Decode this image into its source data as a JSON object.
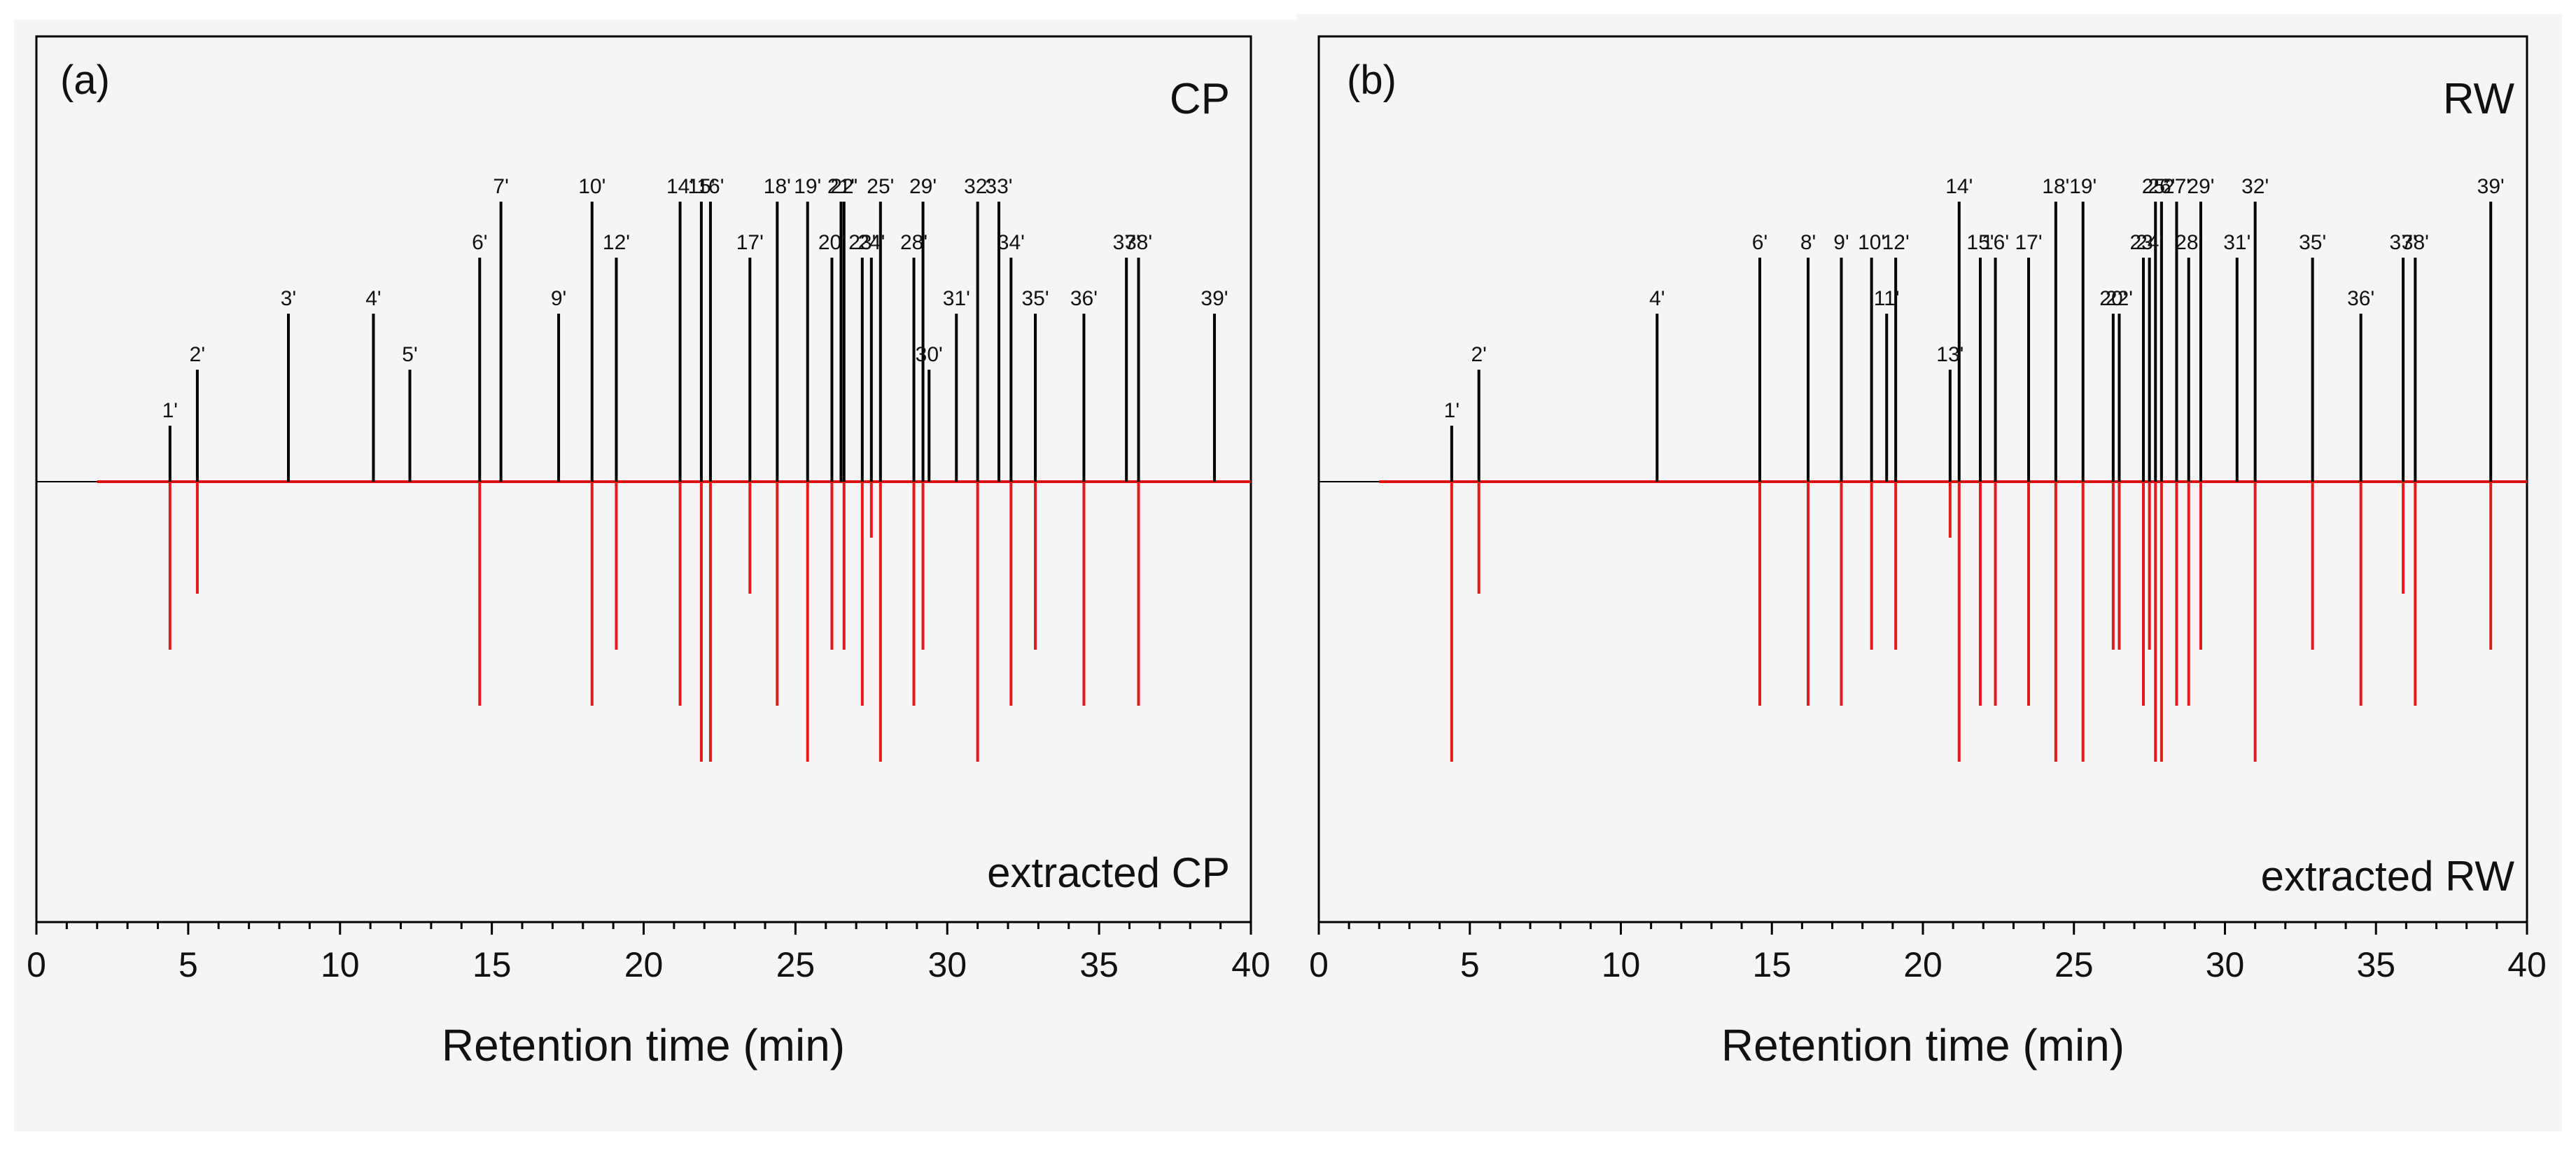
{
  "chart_data": [
    {
      "type": "stick",
      "panel_label": "(a)",
      "title_top": "CP",
      "title_bottom": "extracted CP",
      "xlabel": "Retention time (min)",
      "xlim": [
        0,
        40
      ],
      "xticks": [
        "0",
        "5",
        "10",
        "15",
        "20",
        "25",
        "30",
        "35",
        "40"
      ],
      "ylim": [
        -1,
        1
      ],
      "series": [
        {
          "name": "CP",
          "color": "#000000",
          "peaks": [
            {
              "label": "1'",
              "x": 4.4,
              "y": 0.2
            },
            {
              "label": "2'",
              "x": 5.3,
              "y": 0.4
            },
            {
              "label": "3'",
              "x": 8.3,
              "y": 0.6
            },
            {
              "label": "4'",
              "x": 11.1,
              "y": 0.6
            },
            {
              "label": "5'",
              "x": 12.3,
              "y": 0.4
            },
            {
              "label": "6'",
              "x": 14.6,
              "y": 0.8
            },
            {
              "label": "7'",
              "x": 15.3,
              "y": 1.0
            },
            {
              "label": "9'",
              "x": 17.2,
              "y": 0.6
            },
            {
              "label": "10'",
              "x": 18.3,
              "y": 1.0
            },
            {
              "label": "12'",
              "x": 19.1,
              "y": 0.8
            },
            {
              "label": "14'",
              "x": 21.2,
              "y": 1.0
            },
            {
              "label": "15'",
              "x": 21.9,
              "y": 1.0
            },
            {
              "label": "16'",
              "x": 22.2,
              "y": 1.0
            },
            {
              "label": "17'",
              "x": 23.5,
              "y": 0.8
            },
            {
              "label": "18'",
              "x": 24.4,
              "y": 1.0
            },
            {
              "label": "19'",
              "x": 25.4,
              "y": 1.0
            },
            {
              "label": "20'",
              "x": 26.2,
              "y": 0.8
            },
            {
              "label": "21'",
              "x": 26.5,
              "y": 1.0
            },
            {
              "label": "22'",
              "x": 26.6,
              "y": 1.0
            },
            {
              "label": "23'",
              "x": 27.2,
              "y": 0.8
            },
            {
              "label": "24'",
              "x": 27.5,
              "y": 0.8
            },
            {
              "label": "25'",
              "x": 27.8,
              "y": 1.0
            },
            {
              "label": "28'",
              "x": 28.9,
              "y": 0.8
            },
            {
              "label": "29'",
              "x": 29.2,
              "y": 1.0
            },
            {
              "label": "30'",
              "x": 29.4,
              "y": 0.4
            },
            {
              "label": "31'",
              "x": 30.3,
              "y": 0.6
            },
            {
              "label": "32'",
              "x": 31.0,
              "y": 1.0
            },
            {
              "label": "33'",
              "x": 31.7,
              "y": 1.0
            },
            {
              "label": "34'",
              "x": 32.1,
              "y": 0.8
            },
            {
              "label": "35'",
              "x": 32.9,
              "y": 0.6
            },
            {
              "label": "36'",
              "x": 34.5,
              "y": 0.6
            },
            {
              "label": "37'",
              "x": 35.9,
              "y": 0.8
            },
            {
              "label": "38'",
              "x": 36.3,
              "y": 0.8
            },
            {
              "label": "39'",
              "x": 38.8,
              "y": 0.6
            }
          ]
        },
        {
          "name": "extracted CP",
          "color": "#e31a1c",
          "peaks": [
            {
              "x": 4.4,
              "y": -0.6
            },
            {
              "x": 5.3,
              "y": -0.4
            },
            {
              "x": 14.6,
              "y": -0.8
            },
            {
              "x": 18.3,
              "y": -0.8
            },
            {
              "x": 19.1,
              "y": -0.6
            },
            {
              "x": 21.2,
              "y": -0.8
            },
            {
              "x": 21.9,
              "y": -1.0
            },
            {
              "x": 22.2,
              "y": -1.0
            },
            {
              "x": 23.5,
              "y": -0.4
            },
            {
              "x": 24.4,
              "y": -0.8
            },
            {
              "x": 25.4,
              "y": -1.0
            },
            {
              "x": 26.2,
              "y": -0.6
            },
            {
              "x": 26.6,
              "y": -0.6
            },
            {
              "x": 27.2,
              "y": -0.8
            },
            {
              "x": 27.5,
              "y": -0.2
            },
            {
              "x": 27.8,
              "y": -1.0
            },
            {
              "x": 28.9,
              "y": -0.8
            },
            {
              "x": 29.2,
              "y": -0.6
            },
            {
              "x": 31.0,
              "y": -1.0
            },
            {
              "x": 32.1,
              "y": -0.8
            },
            {
              "x": 32.9,
              "y": -0.6
            },
            {
              "x": 34.5,
              "y": -0.8
            },
            {
              "x": 36.3,
              "y": -0.8
            }
          ]
        }
      ]
    },
    {
      "type": "stick",
      "panel_label": "(b)",
      "title_top": "RW",
      "title_bottom": "extracted RW",
      "xlabel": "Retention time (min)",
      "xlim": [
        0,
        40
      ],
      "xticks": [
        "0",
        "5",
        "10",
        "15",
        "20",
        "25",
        "30",
        "35",
        "40"
      ],
      "ylim": [
        -1,
        1
      ],
      "series": [
        {
          "name": "RW",
          "color": "#000000",
          "peaks": [
            {
              "label": "1'",
              "x": 4.4,
              "y": 0.2
            },
            {
              "label": "2'",
              "x": 5.3,
              "y": 0.4
            },
            {
              "label": "4'",
              "x": 11.2,
              "y": 0.6
            },
            {
              "label": "6'",
              "x": 14.6,
              "y": 0.8
            },
            {
              "label": "8'",
              "x": 16.2,
              "y": 0.8
            },
            {
              "label": "9'",
              "x": 17.3,
              "y": 0.8
            },
            {
              "label": "10'",
              "x": 18.3,
              "y": 0.8
            },
            {
              "label": "11'",
              "x": 18.8,
              "y": 0.6
            },
            {
              "label": "12'",
              "x": 19.1,
              "y": 0.8
            },
            {
              "label": "13'",
              "x": 20.9,
              "y": 0.4
            },
            {
              "label": "14'",
              "x": 21.2,
              "y": 1.0
            },
            {
              "label": "15'",
              "x": 21.9,
              "y": 0.8
            },
            {
              "label": "16'",
              "x": 22.4,
              "y": 0.8
            },
            {
              "label": "17'",
              "x": 23.5,
              "y": 0.8
            },
            {
              "label": "18'",
              "x": 24.4,
              "y": 1.0
            },
            {
              "label": "19'",
              "x": 25.3,
              "y": 1.0
            },
            {
              "label": "20'",
              "x": 26.3,
              "y": 0.6
            },
            {
              "label": "22'",
              "x": 26.5,
              "y": 0.6
            },
            {
              "label": "23'",
              "x": 27.3,
              "y": 0.8
            },
            {
              "label": "24'",
              "x": 27.5,
              "y": 0.8
            },
            {
              "label": "25'",
              "x": 27.7,
              "y": 1.0
            },
            {
              "label": "26'",
              "x": 27.9,
              "y": 1.0
            },
            {
              "label": "27'",
              "x": 28.4,
              "y": 1.0
            },
            {
              "label": "28'",
              "x": 28.8,
              "y": 0.8
            },
            {
              "label": "29'",
              "x": 29.2,
              "y": 1.0
            },
            {
              "label": "31'",
              "x": 30.4,
              "y": 0.8
            },
            {
              "label": "32'",
              "x": 31.0,
              "y": 1.0
            },
            {
              "label": "35'",
              "x": 32.9,
              "y": 0.8
            },
            {
              "label": "36'",
              "x": 34.5,
              "y": 0.6
            },
            {
              "label": "37'",
              "x": 35.9,
              "y": 0.8
            },
            {
              "label": "38'",
              "x": 36.3,
              "y": 0.8
            },
            {
              "label": "39'",
              "x": 38.8,
              "y": 1.0
            }
          ]
        },
        {
          "name": "extracted RW",
          "color": "#e31a1c",
          "peaks": [
            {
              "x": 4.4,
              "y": -1.0
            },
            {
              "x": 5.3,
              "y": -0.4
            },
            {
              "x": 14.6,
              "y": -0.8
            },
            {
              "x": 16.2,
              "y": -0.8
            },
            {
              "x": 17.3,
              "y": -0.8
            },
            {
              "x": 18.3,
              "y": -0.6
            },
            {
              "x": 19.1,
              "y": -0.6
            },
            {
              "x": 20.9,
              "y": -0.2
            },
            {
              "x": 21.2,
              "y": -1.0
            },
            {
              "x": 21.9,
              "y": -0.8
            },
            {
              "x": 22.4,
              "y": -0.8
            },
            {
              "x": 23.5,
              "y": -0.8
            },
            {
              "x": 24.4,
              "y": -1.0
            },
            {
              "x": 25.3,
              "y": -1.0
            },
            {
              "x": 26.3,
              "y": -0.6
            },
            {
              "x": 26.5,
              "y": -0.6
            },
            {
              "x": 27.3,
              "y": -0.8
            },
            {
              "x": 27.5,
              "y": -0.6
            },
            {
              "x": 27.7,
              "y": -1.0
            },
            {
              "x": 27.9,
              "y": -1.0
            },
            {
              "x": 28.4,
              "y": -0.8
            },
            {
              "x": 28.8,
              "y": -0.8
            },
            {
              "x": 29.2,
              "y": -0.6
            },
            {
              "x": 31.0,
              "y": -1.0
            },
            {
              "x": 32.9,
              "y": -0.6
            },
            {
              "x": 34.5,
              "y": -0.8
            },
            {
              "x": 35.9,
              "y": -0.4
            },
            {
              "x": 36.3,
              "y": -0.8
            },
            {
              "x": 38.8,
              "y": -0.6
            }
          ]
        }
      ]
    }
  ]
}
